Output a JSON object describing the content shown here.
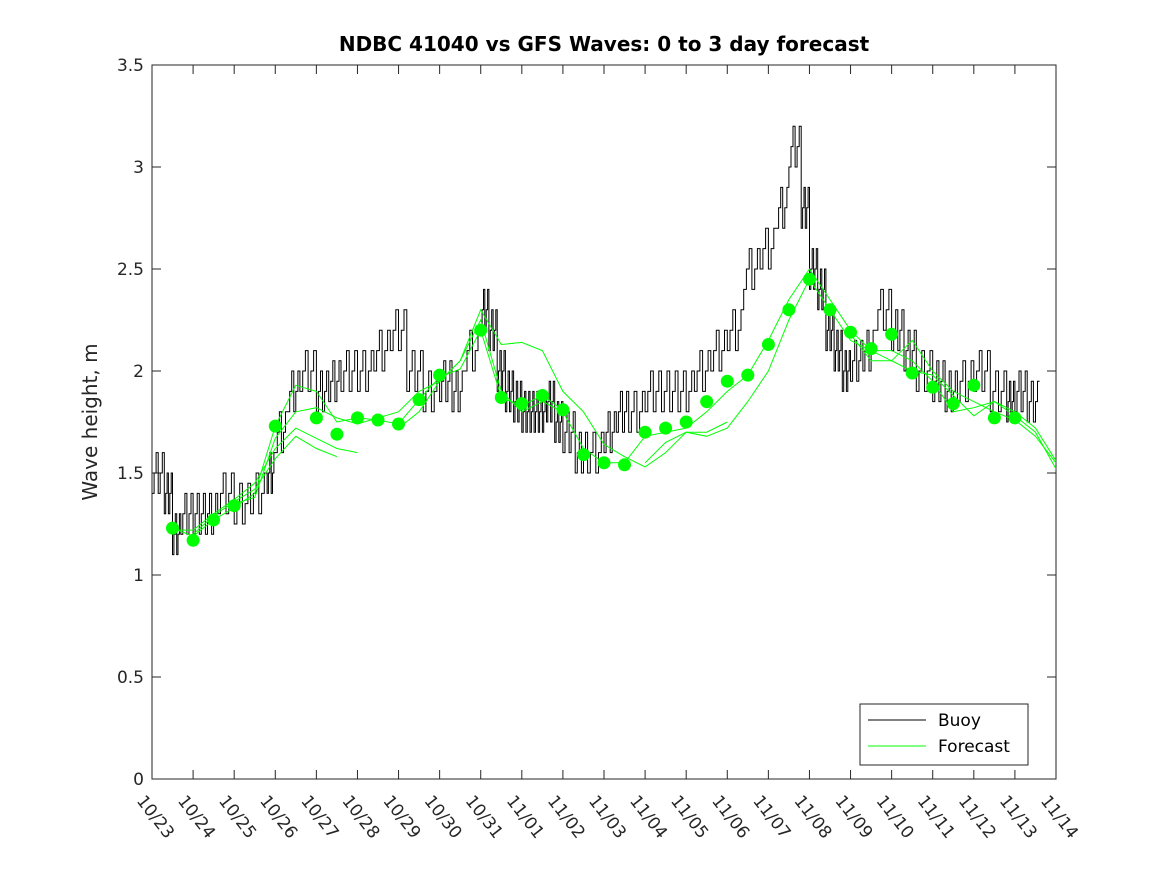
{
  "chart_data": {
    "type": "line",
    "title": "NDBC 41040 vs GFS Waves: 0 to 3 day forecast",
    "xlabel": "",
    "ylabel": "Wave height, m",
    "xlim": [
      0,
      22
    ],
    "ylim": [
      0,
      3.5
    ],
    "x_tick_labels": [
      "10/23",
      "10/24",
      "10/25",
      "10/26",
      "10/27",
      "10/28",
      "10/29",
      "10/30",
      "10/31",
      "11/01",
      "11/02",
      "11/03",
      "11/04",
      "11/05",
      "11/06",
      "11/07",
      "11/08",
      "11/09",
      "11/10",
      "11/11",
      "11/12",
      "11/13",
      "11/14"
    ],
    "y_ticks": [
      0,
      0.5,
      1,
      1.5,
      2,
      2.5,
      3,
      3.5
    ],
    "y_tick_labels": [
      "0",
      "0.5",
      "1",
      "1.5",
      "2",
      "2.5",
      "3",
      "3.5"
    ],
    "grid": false,
    "legend_position": "bottom-right",
    "legend": [
      "Buoy",
      "Forecast"
    ],
    "colors": {
      "buoy": "#000000",
      "forecast": "#00ff00",
      "axes": "#262626"
    },
    "buoy_series": {
      "name": "Buoy",
      "x": [
        0,
        0.3,
        0.5,
        0.7,
        1.0,
        1.3,
        1.6,
        2.0,
        2.4,
        2.8,
        3.0,
        3.3,
        3.6,
        4.0,
        4.3,
        4.6,
        5.0,
        5.4,
        5.8,
        6.2,
        6.6,
        7.0,
        7.3,
        7.6,
        8.0,
        8.2,
        8.4,
        8.6,
        8.8,
        9.0,
        9.2,
        9.4,
        9.6,
        9.8,
        10.0,
        10.3,
        10.6,
        11.0,
        11.3,
        11.6,
        12.0,
        12.4,
        12.8,
        13.2,
        13.6,
        14.0,
        14.4,
        14.8,
        15.2,
        15.5,
        15.8,
        16.0,
        16.2,
        16.4,
        16.6,
        16.8,
        17.0,
        17.3,
        17.6,
        18.0,
        18.3,
        18.6,
        19.0,
        19.3,
        19.6,
        20.0,
        20.4,
        20.8,
        21.0,
        21.3
      ],
      "y": [
        1.5,
        1.4,
        1.2,
        1.3,
        1.3,
        1.3,
        1.4,
        1.35,
        1.4,
        1.5,
        1.7,
        1.9,
        2.0,
        1.9,
        1.95,
        2.0,
        2.0,
        2.1,
        2.2,
        2.0,
        1.9,
        1.95,
        1.9,
        2.1,
        2.3,
        2.2,
        2.0,
        1.9,
        1.85,
        1.8,
        1.8,
        1.8,
        1.85,
        1.75,
        1.7,
        1.6,
        1.6,
        1.7,
        1.8,
        1.8,
        1.9,
        1.9,
        1.9,
        2.0,
        2.1,
        2.2,
        2.5,
        2.6,
        2.8,
        3.1,
        2.8,
        2.5,
        2.4,
        2.2,
        2.1,
        2.0,
        2.05,
        2.1,
        2.3,
        2.2,
        2.1,
        2.0,
        1.95,
        1.9,
        1.95,
        2.0,
        1.9,
        1.85,
        1.9,
        1.85
      ]
    },
    "forecast_lines": [
      {
        "name": "Forecast",
        "x": [
          0.5,
          1.0,
          1.5,
          2.0,
          2.5,
          3.0,
          3.5,
          4.0,
          4.5,
          5.0,
          5.5,
          6.0,
          6.5,
          7.0,
          7.5,
          8.0,
          8.5,
          9.0,
          9.5,
          10.0
        ],
        "y": [
          1.23,
          1.19,
          1.27,
          1.33,
          1.4,
          1.73,
          1.93,
          1.9,
          1.75,
          1.77,
          1.76,
          1.74,
          1.86,
          1.97,
          2.01,
          2.2,
          1.87,
          1.83,
          1.88,
          1.81
        ]
      },
      {
        "name": "Forecast",
        "x": [
          0.5,
          1.0,
          1.5,
          2.0,
          2.5,
          3.0,
          3.5,
          4.0,
          4.5,
          5.0
        ],
        "y": [
          1.22,
          1.22,
          1.3,
          1.37,
          1.45,
          1.62,
          1.72,
          1.67,
          1.62,
          1.6
        ]
      },
      {
        "name": "Forecast",
        "x": [
          1.0,
          1.5,
          2.0,
          2.5,
          3.0,
          3.5,
          4.0,
          4.5
        ],
        "y": [
          1.2,
          1.29,
          1.36,
          1.42,
          1.57,
          1.68,
          1.62,
          1.58
        ]
      },
      {
        "name": "Forecast",
        "x": [
          2.0,
          2.5,
          3.0,
          3.5,
          4.0,
          4.5,
          5.0,
          5.5,
          6.0,
          6.5,
          7.0,
          7.5,
          8.0,
          8.5,
          9.0,
          9.5,
          10.0,
          10.5,
          11.0,
          11.5,
          12.0,
          12.5,
          13.0,
          13.5,
          14.0
        ],
        "y": [
          1.35,
          1.38,
          1.67,
          1.8,
          1.82,
          1.77,
          1.74,
          1.77,
          1.8,
          1.9,
          1.95,
          2.05,
          2.3,
          2.13,
          2.14,
          2.1,
          1.9,
          1.8,
          1.64,
          1.58,
          1.53,
          1.6,
          1.7,
          1.7,
          1.75
        ]
      },
      {
        "name": "Forecast",
        "x": [
          6.0,
          6.5,
          7.0,
          7.5,
          8.0,
          8.5,
          9.0,
          9.5,
          10.0,
          10.5,
          11.0,
          11.5,
          12.0,
          12.5,
          13.0,
          13.5,
          14.0,
          14.5,
          15.0,
          15.5,
          16.0,
          16.5,
          17.0,
          17.5,
          18.0,
          18.5,
          19.0,
          19.5,
          20.0,
          20.5,
          21.0,
          21.5,
          22.0
        ],
        "y": [
          1.72,
          1.8,
          1.95,
          2.05,
          2.25,
          1.9,
          1.8,
          1.85,
          1.8,
          1.62,
          1.55,
          1.55,
          1.68,
          1.7,
          1.72,
          1.8,
          1.9,
          1.98,
          2.15,
          2.35,
          2.5,
          2.35,
          2.2,
          2.1,
          2.05,
          2.15,
          2.0,
          1.9,
          1.85,
          1.8,
          1.76,
          1.68,
          1.55
        ]
      },
      {
        "name": "Forecast",
        "x": [
          12.0,
          12.5,
          13.0,
          13.5,
          14.0,
          14.5,
          15.0,
          15.5,
          16.0,
          16.5,
          17.0,
          17.5,
          18.0,
          18.5,
          19.0,
          19.5,
          20.0,
          20.5,
          21.0,
          21.5,
          22.0
        ],
        "y": [
          1.55,
          1.65,
          1.7,
          1.68,
          1.72,
          1.85,
          2.0,
          2.25,
          2.45,
          2.3,
          2.15,
          2.1,
          2.1,
          2.05,
          1.95,
          1.8,
          1.82,
          1.85,
          1.78,
          1.7,
          1.52
        ]
      },
      {
        "name": "Forecast",
        "x": [
          17.0,
          17.5,
          18.0,
          18.5,
          19.0,
          19.5,
          20.0,
          20.5,
          21.0,
          21.5,
          22.0
        ],
        "y": [
          2.18,
          2.05,
          2.05,
          2.0,
          1.98,
          1.88,
          1.78,
          1.85,
          1.8,
          1.72,
          1.56
        ]
      }
    ],
    "forecast_markers": {
      "name": "Forecast 0-hr",
      "x": [
        0.5,
        1.0,
        1.5,
        2.0,
        3.0,
        4.0,
        4.5,
        5.0,
        5.5,
        6.0,
        6.5,
        7.0,
        8.0,
        8.5,
        9.0,
        9.5,
        10.0,
        10.5,
        11.0,
        11.5,
        12.0,
        12.5,
        13.0,
        13.5,
        14.0,
        14.5,
        15.0,
        15.5,
        16.0,
        16.5,
        17.0,
        17.5,
        18.0,
        18.5,
        19.0,
        19.5,
        20.0,
        20.5,
        21.0
      ],
      "y": [
        1.23,
        1.17,
        1.27,
        1.34,
        1.73,
        1.77,
        1.69,
        1.77,
        1.76,
        1.74,
        1.86,
        1.98,
        2.2,
        1.87,
        1.84,
        1.88,
        1.81,
        1.59,
        1.55,
        1.54,
        1.7,
        1.72,
        1.75,
        1.85,
        1.95,
        1.98,
        2.13,
        2.3,
        2.45,
        2.3,
        2.19,
        2.11,
        2.18,
        1.99,
        1.92,
        1.84,
        1.93,
        1.77,
        1.77
      ]
    }
  }
}
